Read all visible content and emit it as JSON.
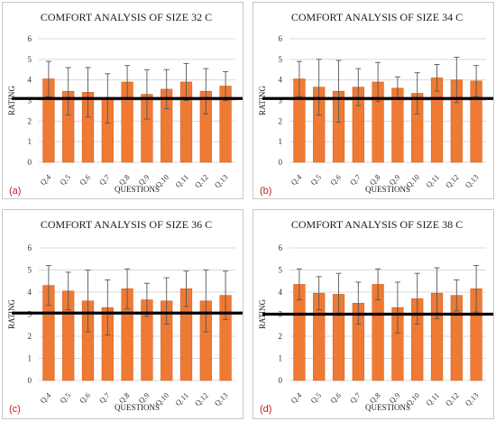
{
  "bar_color": "#ef7a34",
  "bar_edge_color": "#d86020",
  "grid_color": "#d9d9d9",
  "error_bar_color": "#555555",
  "threshold_line_color": "#000000",
  "panel_label_color": "#c81e1e",
  "chart_data": [
    {
      "type": "bar",
      "title": "COMFORT ANALYSIS OF SIZE 32 C",
      "panel_label": "(a)",
      "xlabel": "QUESTIONS",
      "ylabel": "RATING",
      "ylim": [
        0,
        6
      ],
      "yticks": [
        "0",
        "1",
        "2",
        "3",
        "4",
        "5",
        "6"
      ],
      "grid": true,
      "categories": [
        "Q.4",
        "Q.5",
        "Q.6",
        "Q.7",
        "Q.8",
        "Q.9",
        "Q.10",
        "Q.11",
        "Q.12",
        "Q.13"
      ],
      "values": [
        4.05,
        3.45,
        3.4,
        3.1,
        3.9,
        3.3,
        3.55,
        3.9,
        3.45,
        3.7
      ],
      "error": [
        0.85,
        1.15,
        1.2,
        1.2,
        0.8,
        1.2,
        0.95,
        0.9,
        1.1,
        0.7
      ],
      "reference_line": 3.1
    },
    {
      "type": "bar",
      "title": "COMFORT ANALYSIS OF SIZE 34 C",
      "panel_label": "(b)",
      "xlabel": "QUESTIONS",
      "ylabel": "RATING",
      "ylim": [
        0,
        6
      ],
      "yticks": [
        "0",
        "1",
        "2",
        "3",
        "4",
        "5",
        "6"
      ],
      "grid": true,
      "categories": [
        "Q.4",
        "Q.5",
        "Q.6",
        "Q.7",
        "Q.8",
        "Q.9",
        "Q.10",
        "Q.11",
        "Q.12",
        "Q.13"
      ],
      "values": [
        4.05,
        3.65,
        3.45,
        3.65,
        3.9,
        3.6,
        3.35,
        4.1,
        4.0,
        3.95
      ],
      "error": [
        0.85,
        1.35,
        1.5,
        0.9,
        0.95,
        0.55,
        1.0,
        0.65,
        1.1,
        0.75
      ],
      "reference_line": 3.1
    },
    {
      "type": "bar",
      "title": "COMFORT ANALYSIS OF SIZE 36 C",
      "panel_label": "(c)",
      "xlabel": "QUESTIONS",
      "ylabel": "RATING",
      "ylim": [
        0,
        6
      ],
      "yticks": [
        "0",
        "1",
        "2",
        "3",
        "4",
        "5",
        "6"
      ],
      "grid": true,
      "categories": [
        "Q.4",
        "Q.5",
        "Q.6",
        "Q.7",
        "Q.8",
        "Q.9",
        "Q.10",
        "Q.11",
        "Q.12",
        "Q.13"
      ],
      "values": [
        4.3,
        4.05,
        3.6,
        3.3,
        4.15,
        3.65,
        3.6,
        4.15,
        3.6,
        3.85
      ],
      "error": [
        0.9,
        0.85,
        1.4,
        1.25,
        0.9,
        0.75,
        1.05,
        0.8,
        1.4,
        1.1
      ],
      "reference_line": 3.05
    },
    {
      "type": "bar",
      "title": "COMFORT ANALYSIS OF SIZE 38 C",
      "panel_label": "(d)",
      "xlabel": "QUESTIONS",
      "ylabel": "RATING",
      "ylim": [
        0,
        6
      ],
      "yticks": [
        "0",
        "1",
        "2",
        "3",
        "4",
        "5",
        "6"
      ],
      "grid": true,
      "categories": [
        "Q.4",
        "Q.5",
        "Q.6",
        "Q.7",
        "Q.8",
        "Q.9",
        "Q.10",
        "Q.11",
        "Q.12",
        "Q.13"
      ],
      "values": [
        4.35,
        3.95,
        3.9,
        3.5,
        4.35,
        3.3,
        3.7,
        3.95,
        3.85,
        4.15
      ],
      "error": [
        0.7,
        0.75,
        0.95,
        0.95,
        0.7,
        1.15,
        1.15,
        1.15,
        0.7,
        1.05
      ],
      "reference_line": 3.0
    }
  ]
}
